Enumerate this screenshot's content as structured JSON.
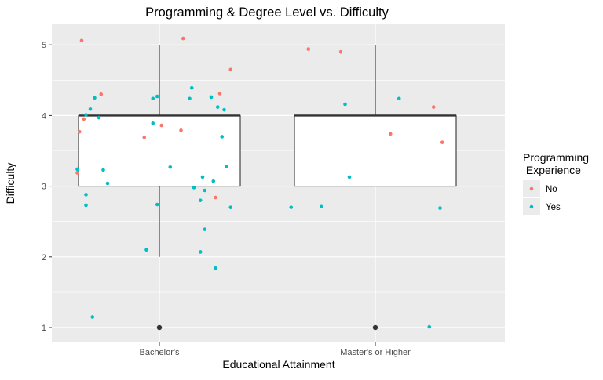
{
  "chart_data": {
    "type": "box-with-jitter",
    "title": "Programming & Degree Level vs. Difficulty",
    "xlabel": "Educational Attainment",
    "ylabel": "Difficulty",
    "categories": [
      "Bachelor's",
      "Master's or Higher"
    ],
    "ylim": [
      0.55,
      5.3
    ],
    "yticks": [
      1,
      2,
      3,
      4,
      5
    ],
    "grid": true,
    "legend": {
      "title_lines": [
        "Programming",
        " Experience"
      ],
      "placement": "right",
      "entries": [
        {
          "label": "No",
          "color": "#F8766D"
        },
        {
          "label": "Yes",
          "color": "#00BFC4"
        }
      ]
    },
    "boxes": [
      {
        "category": "Bachelor's",
        "q1": 3,
        "median": 4,
        "q3": 4,
        "whisker_low": 2,
        "whisker_high": 5,
        "outliers": [
          1
        ]
      },
      {
        "category": "Master's or Higher",
        "q1": 3,
        "median": 4,
        "q3": 4,
        "whisker_low": 3,
        "whisker_high": 5,
        "outliers": [
          1
        ]
      }
    ],
    "series": [
      {
        "name": "No",
        "color": "#F8766D",
        "points": [
          {
            "x": 0.64,
            "y": 5.06
          },
          {
            "x": 1.11,
            "y": 5.09
          },
          {
            "x": 1.33,
            "y": 4.65
          },
          {
            "x": 0.73,
            "y": 4.3
          },
          {
            "x": 1.28,
            "y": 4.31
          },
          {
            "x": 0.65,
            "y": 3.95
          },
          {
            "x": 0.63,
            "y": 3.77
          },
          {
            "x": 1.01,
            "y": 3.86
          },
          {
            "x": 0.93,
            "y": 3.69
          },
          {
            "x": 1.1,
            "y": 3.79
          },
          {
            "x": 0.62,
            "y": 3.19
          },
          {
            "x": 1.26,
            "y": 2.84
          },
          {
            "x": 1.69,
            "y": 4.94
          },
          {
            "x": 1.84,
            "y": 4.9
          },
          {
            "x": 2.07,
            "y": 3.74
          },
          {
            "x": 2.27,
            "y": 4.12
          },
          {
            "x": 2.31,
            "y": 3.62
          }
        ]
      },
      {
        "name": "Yes",
        "color": "#00BFC4",
        "points": [
          {
            "x": 0.7,
            "y": 4.25
          },
          {
            "x": 0.68,
            "y": 4.09
          },
          {
            "x": 0.66,
            "y": 4.01
          },
          {
            "x": 0.72,
            "y": 3.97
          },
          {
            "x": 0.62,
            "y": 3.24
          },
          {
            "x": 0.74,
            "y": 3.23
          },
          {
            "x": 0.76,
            "y": 3.04
          },
          {
            "x": 0.66,
            "y": 2.88
          },
          {
            "x": 0.66,
            "y": 2.73
          },
          {
            "x": 0.97,
            "y": 4.24
          },
          {
            "x": 0.99,
            "y": 4.27
          },
          {
            "x": 1.15,
            "y": 4.39
          },
          {
            "x": 1.14,
            "y": 4.24
          },
          {
            "x": 1.24,
            "y": 4.26
          },
          {
            "x": 1.27,
            "y": 4.12
          },
          {
            "x": 1.3,
            "y": 4.08
          },
          {
            "x": 0.97,
            "y": 3.89
          },
          {
            "x": 1.29,
            "y": 3.7
          },
          {
            "x": 1.05,
            "y": 3.27
          },
          {
            "x": 1.2,
            "y": 3.13
          },
          {
            "x": 1.31,
            "y": 3.28
          },
          {
            "x": 1.25,
            "y": 3.07
          },
          {
            "x": 1.16,
            "y": 2.98
          },
          {
            "x": 1.21,
            "y": 2.94
          },
          {
            "x": 1.19,
            "y": 2.8
          },
          {
            "x": 0.99,
            "y": 2.74
          },
          {
            "x": 1.33,
            "y": 2.7
          },
          {
            "x": 1.21,
            "y": 2.39
          },
          {
            "x": 0.94,
            "y": 2.1
          },
          {
            "x": 1.19,
            "y": 2.07
          },
          {
            "x": 1.26,
            "y": 1.84
          },
          {
            "x": 0.69,
            "y": 1.15
          },
          {
            "x": 1.86,
            "y": 4.16
          },
          {
            "x": 2.11,
            "y": 4.24
          },
          {
            "x": 1.88,
            "y": 3.13
          },
          {
            "x": 1.61,
            "y": 2.7
          },
          {
            "x": 1.75,
            "y": 2.71
          },
          {
            "x": 2.3,
            "y": 2.69
          },
          {
            "x": 2.25,
            "y": 1.01
          }
        ]
      }
    ]
  }
}
